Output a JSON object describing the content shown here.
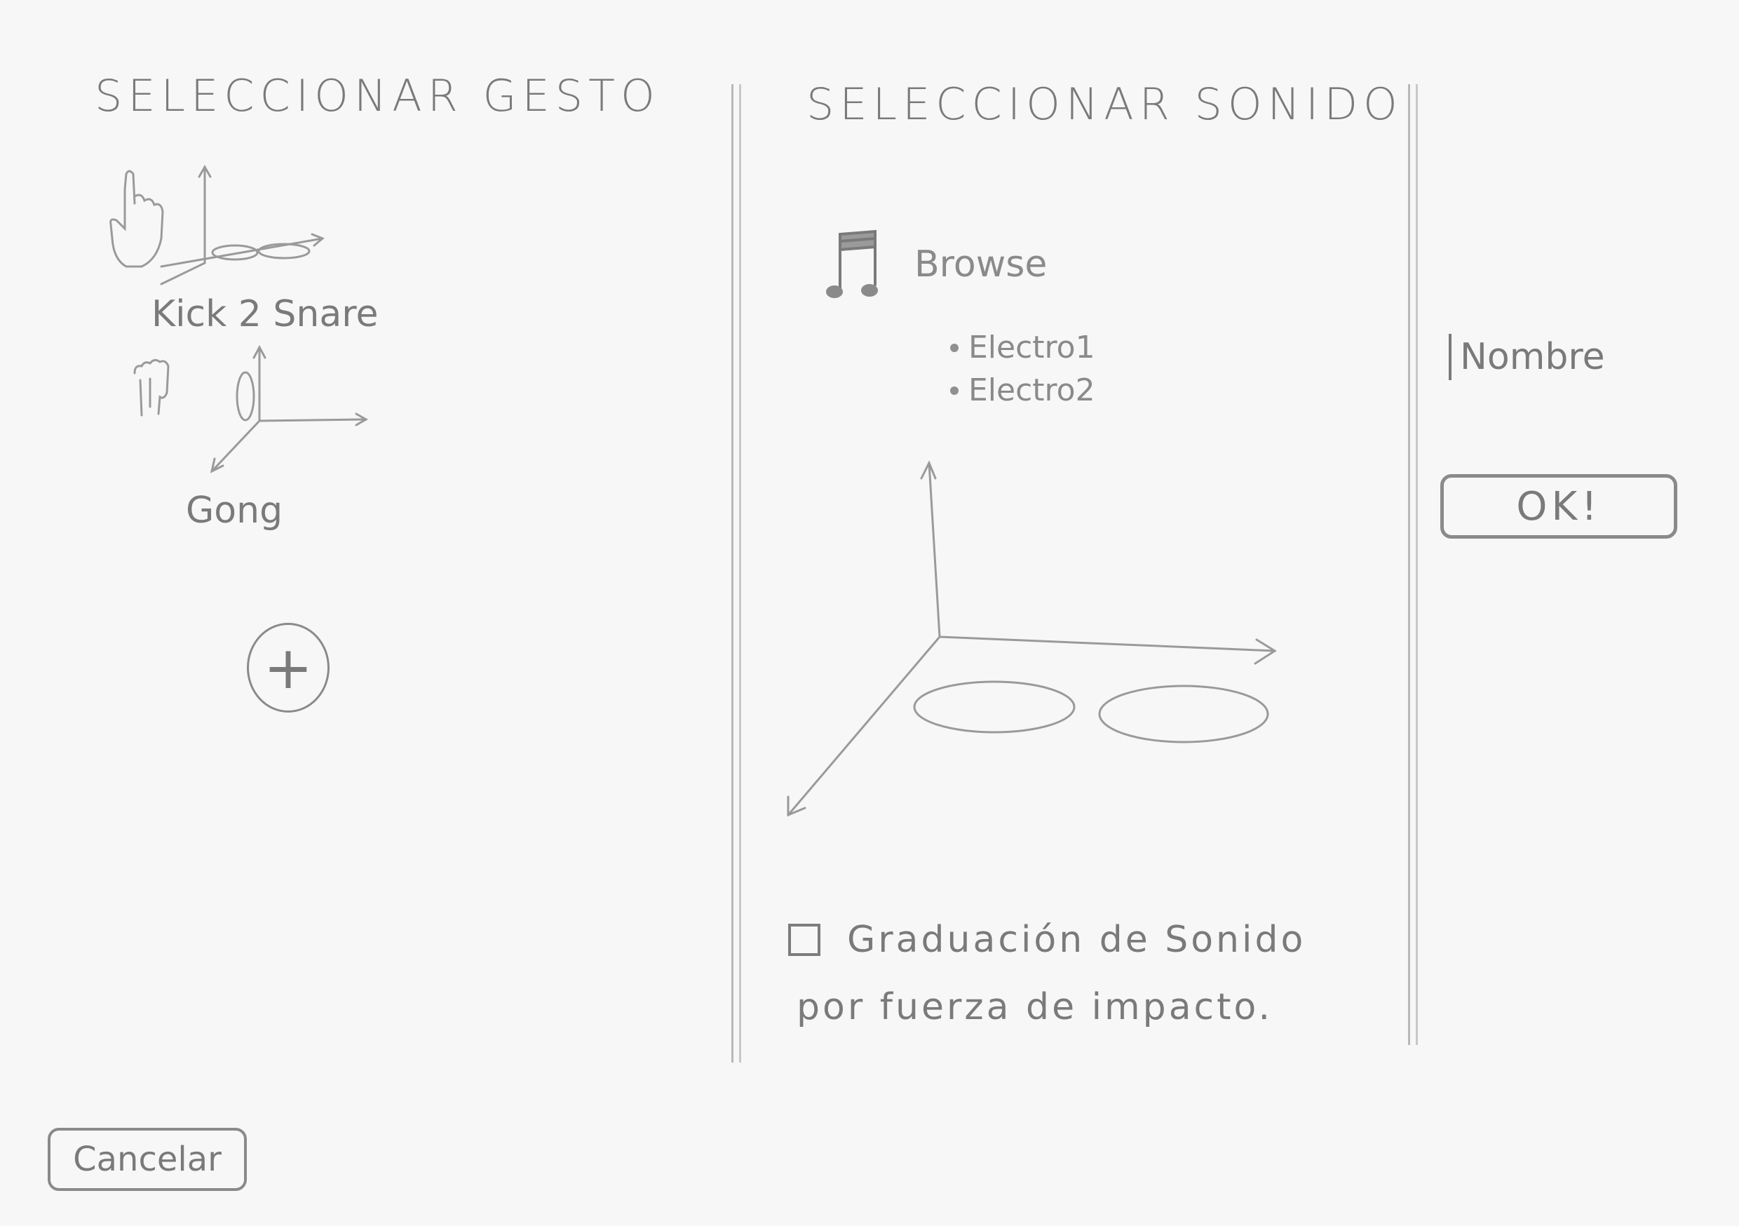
{
  "gesture_panel": {
    "title": "SELECCIONAR GESTO",
    "gestures": [
      {
        "label": "Kick 2 Snare"
      },
      {
        "label": "Gong"
      }
    ],
    "add_label": "+"
  },
  "sound_panel": {
    "title": "SELECCIONAR SONIDO",
    "browse_label": "Browse",
    "sounds": [
      "Electro1",
      "Electro2"
    ],
    "velocity_checkbox": {
      "label_line1": "Graduación de Sonido",
      "label_line2": "por fuerza de impacto.",
      "checked": false
    }
  },
  "side_panel": {
    "name_input": {
      "value": "",
      "placeholder": "Nombre"
    },
    "ok_label": "OK!"
  },
  "footer": {
    "cancel_label": "Cancelar"
  },
  "colors": {
    "pencil": "#808080",
    "paper": "#f7f7f7"
  }
}
